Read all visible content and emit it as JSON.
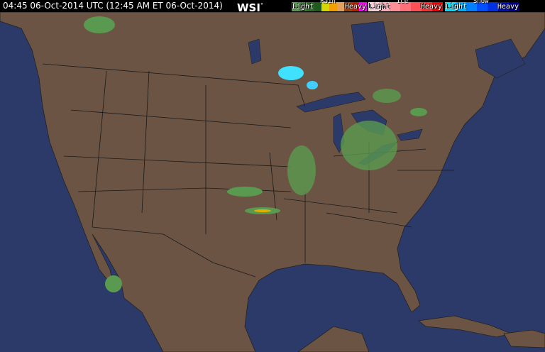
{
  "header": {
    "timestamp": "04:45 06-Oct-2014 UTC  (12:45 AM ET 06-Oct-2014)",
    "logo": "WSI",
    "legend": [
      {
        "title": "Rain",
        "light": "Light",
        "heavy": "Heavy",
        "colors": [
          "#5a9a50",
          "#3f7f3a",
          "#2e6a2a",
          "#1e5a1e",
          "#d8d800",
          "#f0a000",
          "#e0a060",
          "#a04010",
          "#c02000",
          "#ff00ff"
        ]
      },
      {
        "title": "Ice",
        "light": "Light",
        "heavy": "Heavy",
        "colors": [
          "#ffd0d8",
          "#ffb0b8",
          "#ff9098",
          "#ff7078",
          "#ff5058",
          "#ff3030",
          "#ff0000"
        ]
      },
      {
        "title": "Snow",
        "light": "Light",
        "heavy": "Heavy",
        "colors": [
          "#00e0ff",
          "#00b0ff",
          "#0080ff",
          "#0050ff",
          "#0030e0",
          "#0010b0",
          "#000090"
        ]
      }
    ]
  },
  "map": {
    "land_color": "#6b5444",
    "water_color": "#2b3a68",
    "border_color": "#1a1a1a"
  }
}
